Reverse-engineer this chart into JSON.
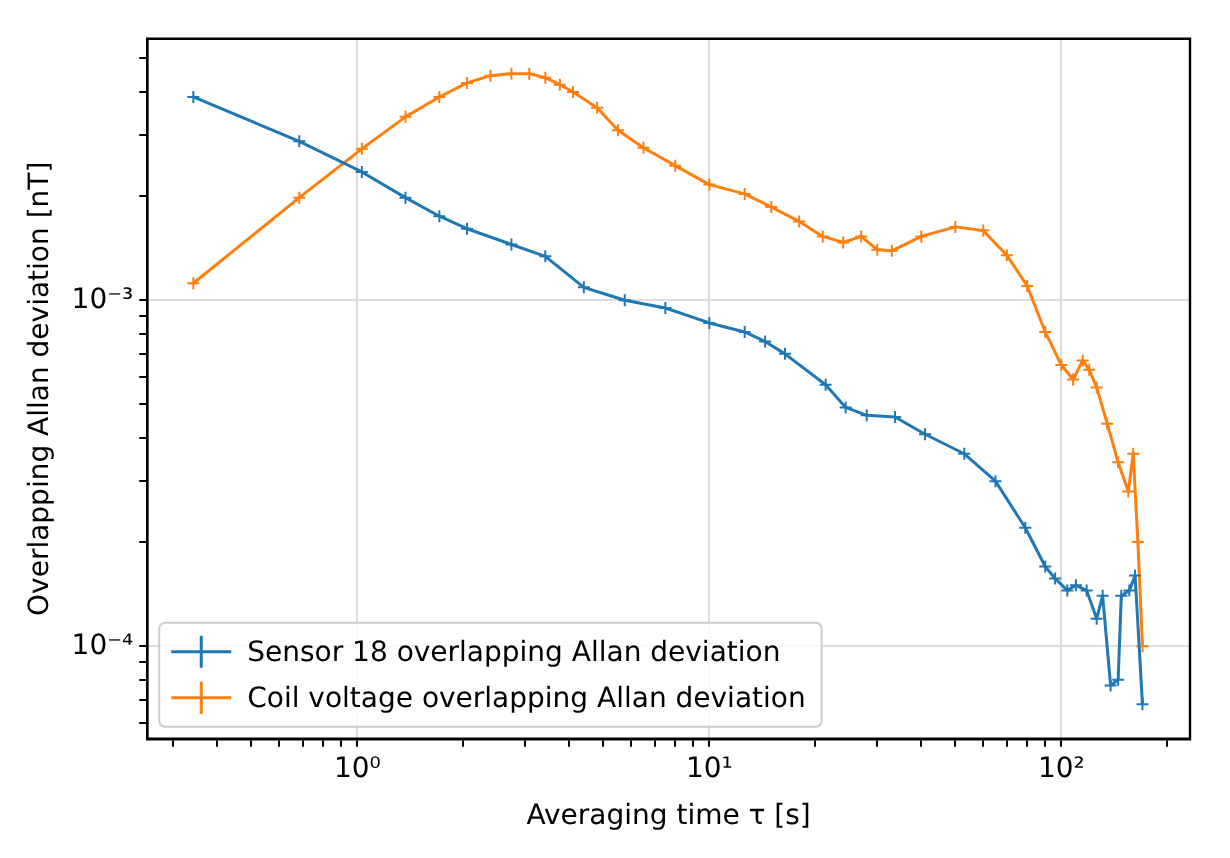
{
  "chart_data": {
    "type": "line",
    "xlabel": "Averaging time τ [s]",
    "ylabel": "Overlapping Allan deviation [nT]",
    "log": "xy",
    "grid": true,
    "legend": "bottom left",
    "marker": "cross",
    "line_style": "solid",
    "xlim": [
      0.253,
      232
    ],
    "ylim": [
      5.4e-05,
      0.0057
    ],
    "xticks": [
      {
        "value": 0.3,
        "label": null
      },
      {
        "value": 0.4,
        "label": null
      },
      {
        "value": 0.5,
        "label": null
      },
      {
        "value": 0.6,
        "label": null
      },
      {
        "value": 0.7,
        "label": null
      },
      {
        "value": 0.8,
        "label": null
      },
      {
        "value": 0.9,
        "label": null
      },
      {
        "value": 1,
        "label": "10⁰"
      },
      {
        "value": 2,
        "label": null
      },
      {
        "value": 3,
        "label": null
      },
      {
        "value": 4,
        "label": null
      },
      {
        "value": 5,
        "label": null
      },
      {
        "value": 6,
        "label": null
      },
      {
        "value": 7,
        "label": null
      },
      {
        "value": 8,
        "label": null
      },
      {
        "value": 9,
        "label": null
      },
      {
        "value": 10,
        "label": "10¹"
      },
      {
        "value": 20,
        "label": null
      },
      {
        "value": 30,
        "label": null
      },
      {
        "value": 40,
        "label": null
      },
      {
        "value": 50,
        "label": null
      },
      {
        "value": 60,
        "label": null
      },
      {
        "value": 70,
        "label": null
      },
      {
        "value": 80,
        "label": null
      },
      {
        "value": 90,
        "label": null
      },
      {
        "value": 100,
        "label": "10²"
      },
      {
        "value": 200,
        "label": null
      }
    ],
    "yticks": [
      {
        "value": 6e-05,
        "label": null
      },
      {
        "value": 7e-05,
        "label": null
      },
      {
        "value": 8e-05,
        "label": null
      },
      {
        "value": 9e-05,
        "label": null
      },
      {
        "value": 0.0001,
        "label": "10⁻⁴"
      },
      {
        "value": 0.0002,
        "label": null
      },
      {
        "value": 0.0003,
        "label": null
      },
      {
        "value": 0.0004,
        "label": null
      },
      {
        "value": 0.0005,
        "label": null
      },
      {
        "value": 0.0006,
        "label": null
      },
      {
        "value": 0.0007,
        "label": null
      },
      {
        "value": 0.0008,
        "label": null
      },
      {
        "value": 0.0009,
        "label": null
      },
      {
        "value": 0.001,
        "label": "10⁻³"
      },
      {
        "value": 0.002,
        "label": null
      },
      {
        "value": 0.003,
        "label": null
      },
      {
        "value": 0.004,
        "label": null
      },
      {
        "value": 0.005,
        "label": null
      }
    ],
    "series": [
      {
        "name": "Sensor 18 overlapping Allan deviation",
        "color": "#1f77b4",
        "x": [
          0.342,
          0.684,
          1.03,
          1.37,
          1.71,
          2.05,
          2.74,
          3.42,
          4.4,
          5.75,
          7.5,
          10,
          12.6,
          14.4,
          16.4,
          21.4,
          24.4,
          28,
          33.7,
          41,
          53,
          65,
          79,
          90,
          96,
          104,
          110,
          118,
          126,
          131,
          138,
          145,
          148,
          156,
          162,
          170
        ],
        "values": [
          0.00387,
          0.00288,
          0.00235,
          0.00198,
          0.00175,
          0.00161,
          0.00145,
          0.00134,
          0.00109,
          0.001,
          0.00095,
          0.00086,
          0.00081,
          0.00076,
          0.0007,
          0.00057,
          0.00049,
          0.000465,
          0.00046,
          0.00041,
          0.00036,
          0.0003,
          0.00022,
          0.00017,
          0.000157,
          0.000145,
          0.00015,
          0.000145,
          0.00012,
          0.00014,
          7.7e-05,
          8e-05,
          0.00014,
          0.000145,
          0.00016,
          6.8e-05
        ]
      },
      {
        "name": "Coil voltage overlapping Allan deviation",
        "color": "#ff7f0e",
        "x": [
          0.342,
          0.684,
          1.03,
          1.37,
          1.71,
          2.05,
          2.39,
          2.74,
          3.08,
          3.42,
          3.76,
          4.1,
          4.8,
          5.5,
          6.5,
          8,
          10,
          12.6,
          15,
          18,
          21,
          24,
          27,
          30,
          33,
          40,
          50,
          60,
          70,
          80,
          90,
          100,
          108,
          115,
          120,
          126,
          135,
          145,
          155,
          160,
          165,
          170
        ],
        "values": [
          0.00112,
          0.00198,
          0.00274,
          0.00339,
          0.00387,
          0.00425,
          0.00446,
          0.00452,
          0.00452,
          0.0044,
          0.0042,
          0.004,
          0.0036,
          0.0031,
          0.00276,
          0.00245,
          0.00216,
          0.00203,
          0.00186,
          0.00169,
          0.00153,
          0.00147,
          0.00153,
          0.0014,
          0.00139,
          0.00153,
          0.00163,
          0.00159,
          0.00135,
          0.0011,
          0.00081,
          0.00065,
          0.00059,
          0.00067,
          0.00063,
          0.00056,
          0.00044,
          0.00034,
          0.00028,
          0.00036,
          0.0002,
          0.0001
        ]
      }
    ]
  }
}
